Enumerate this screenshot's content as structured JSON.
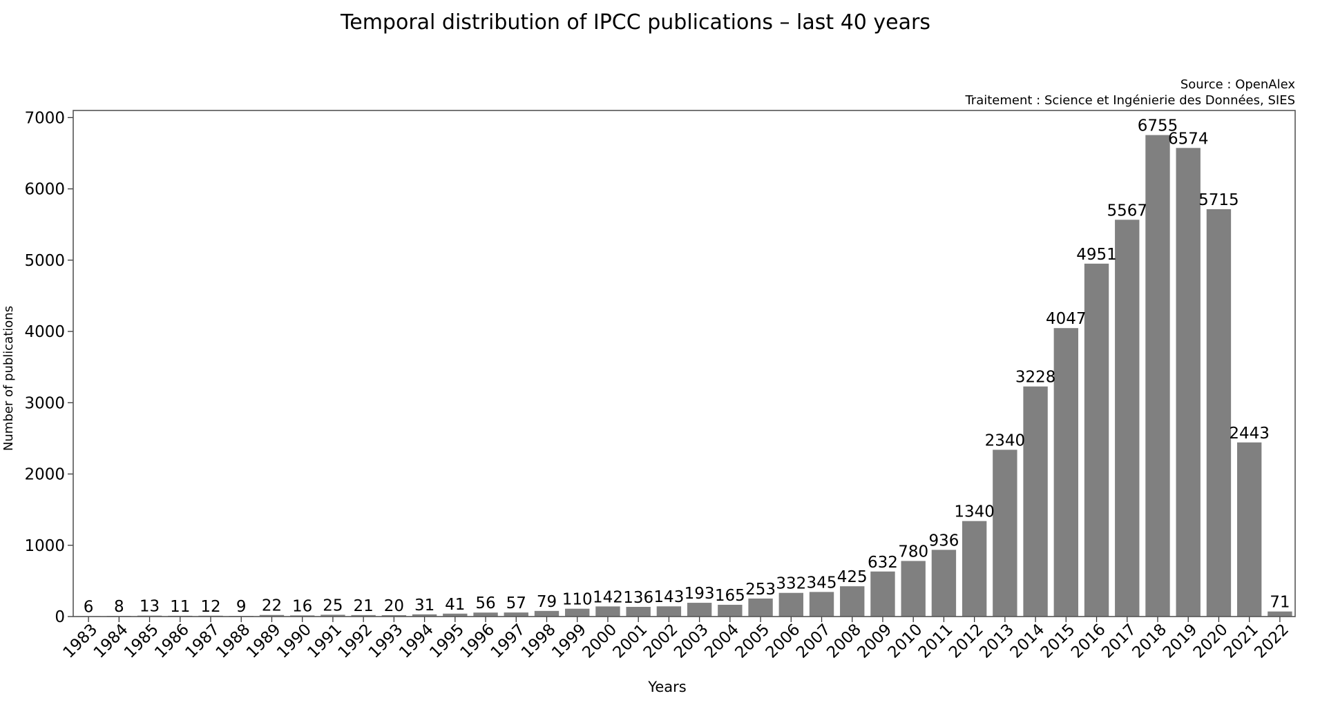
{
  "chart_data": {
    "type": "bar",
    "title": "Temporal distribution of IPCC publications – last 40 years",
    "source_line": "Source : OpenAlex",
    "processing_line": "Traitement : Science et Ingénierie des Données, SIES",
    "xlabel": "Years",
    "ylabel": "Number of publications",
    "ylim": [
      0,
      7100
    ],
    "yticks": [
      0,
      1000,
      2000,
      3000,
      4000,
      5000,
      6000,
      7000
    ],
    "grid": false,
    "bar_color": "#808080",
    "categories": [
      "1983",
      "1984",
      "1985",
      "1986",
      "1987",
      "1988",
      "1989",
      "1990",
      "1991",
      "1992",
      "1993",
      "1994",
      "1995",
      "1996",
      "1997",
      "1998",
      "1999",
      "2000",
      "2001",
      "2002",
      "2003",
      "2004",
      "2005",
      "2006",
      "2007",
      "2008",
      "2009",
      "2010",
      "2011",
      "2012",
      "2013",
      "2014",
      "2015",
      "2016",
      "2017",
      "2018",
      "2019",
      "2020",
      "2021",
      "2022"
    ],
    "values": [
      6,
      8,
      13,
      11,
      12,
      9,
      22,
      16,
      25,
      21,
      20,
      31,
      41,
      56,
      57,
      79,
      110,
      142,
      136,
      143,
      193,
      165,
      253,
      332,
      345,
      425,
      632,
      780,
      936,
      1340,
      2340,
      3228,
      4047,
      4951,
      5567,
      6755,
      6574,
      5715,
      2443,
      71
    ]
  }
}
